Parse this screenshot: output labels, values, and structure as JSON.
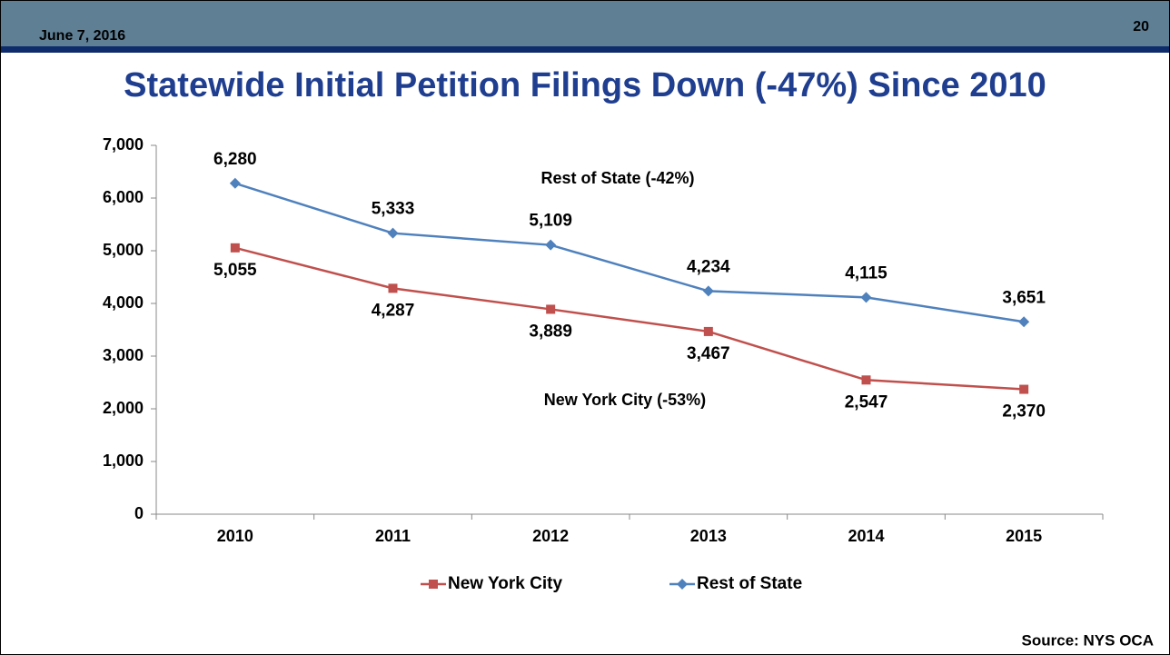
{
  "header": {
    "date": "June 7, 2016",
    "page": "20"
  },
  "chart_data": {
    "type": "line",
    "title": "Statewide Initial Petition Filings Down (-47%) Since 2010",
    "categories": [
      "2010",
      "2011",
      "2012",
      "2013",
      "2014",
      "2015"
    ],
    "series": [
      {
        "name": "New York City",
        "color": "#c0504d",
        "marker": "square",
        "values": [
          5055,
          4287,
          3889,
          3467,
          2547,
          2370
        ],
        "value_labels": [
          "5,055",
          "4,287",
          "3,889",
          "3,467",
          "2,547",
          "2,370"
        ]
      },
      {
        "name": "Rest of State",
        "color": "#4f81bd",
        "marker": "diamond",
        "values": [
          6280,
          5333,
          5109,
          4234,
          4115,
          3651
        ],
        "value_labels": [
          "6,280",
          "5,333",
          "5,109",
          "4,234",
          "4,115",
          "3,651"
        ]
      }
    ],
    "ylim": [
      0,
      7000
    ],
    "yticks": [
      0,
      {
        "value": 1000,
        "label": "1,000"
      },
      {
        "value": 2000,
        "label": "2,000"
      },
      {
        "value": 3000,
        "label": "3,000"
      },
      {
        "value": 4000,
        "label": "4,000"
      },
      {
        "value": 5000,
        "label": "5,000"
      },
      {
        "value": 6000,
        "label": "6,000"
      },
      {
        "value": 7000,
        "label": "7,000"
      }
    ],
    "grid": false,
    "legend": "bottom",
    "annotations": [
      "Rest of State (-42%)",
      "New York City (-53%)"
    ],
    "source": "Source: NYS OCA"
  }
}
